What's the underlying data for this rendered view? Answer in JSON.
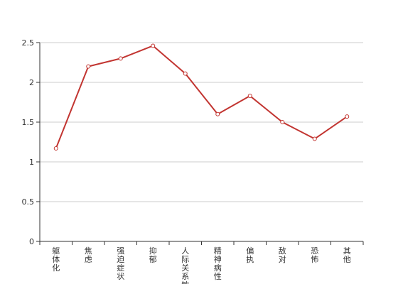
{
  "chart_data": {
    "type": "line",
    "categories": [
      "躯体化",
      "焦虑",
      "强迫症状",
      "抑郁",
      "人际关系敏感",
      "精神病性",
      "偏执",
      "敌对",
      "恐怖",
      "其他"
    ],
    "series": [
      {
        "values": [
          1.17,
          2.2,
          2.3,
          2.46,
          2.11,
          1.6,
          1.83,
          1.5,
          1.29,
          1.57
        ]
      }
    ],
    "y_ticks": [
      "0",
      "0.5",
      "1",
      "1.5",
      "2",
      "2.5"
    ],
    "ylim": [
      0,
      2.5
    ],
    "grid": true,
    "colors": {
      "line": "#c23531",
      "grid": "#cccccc",
      "axis": "#333333"
    }
  }
}
